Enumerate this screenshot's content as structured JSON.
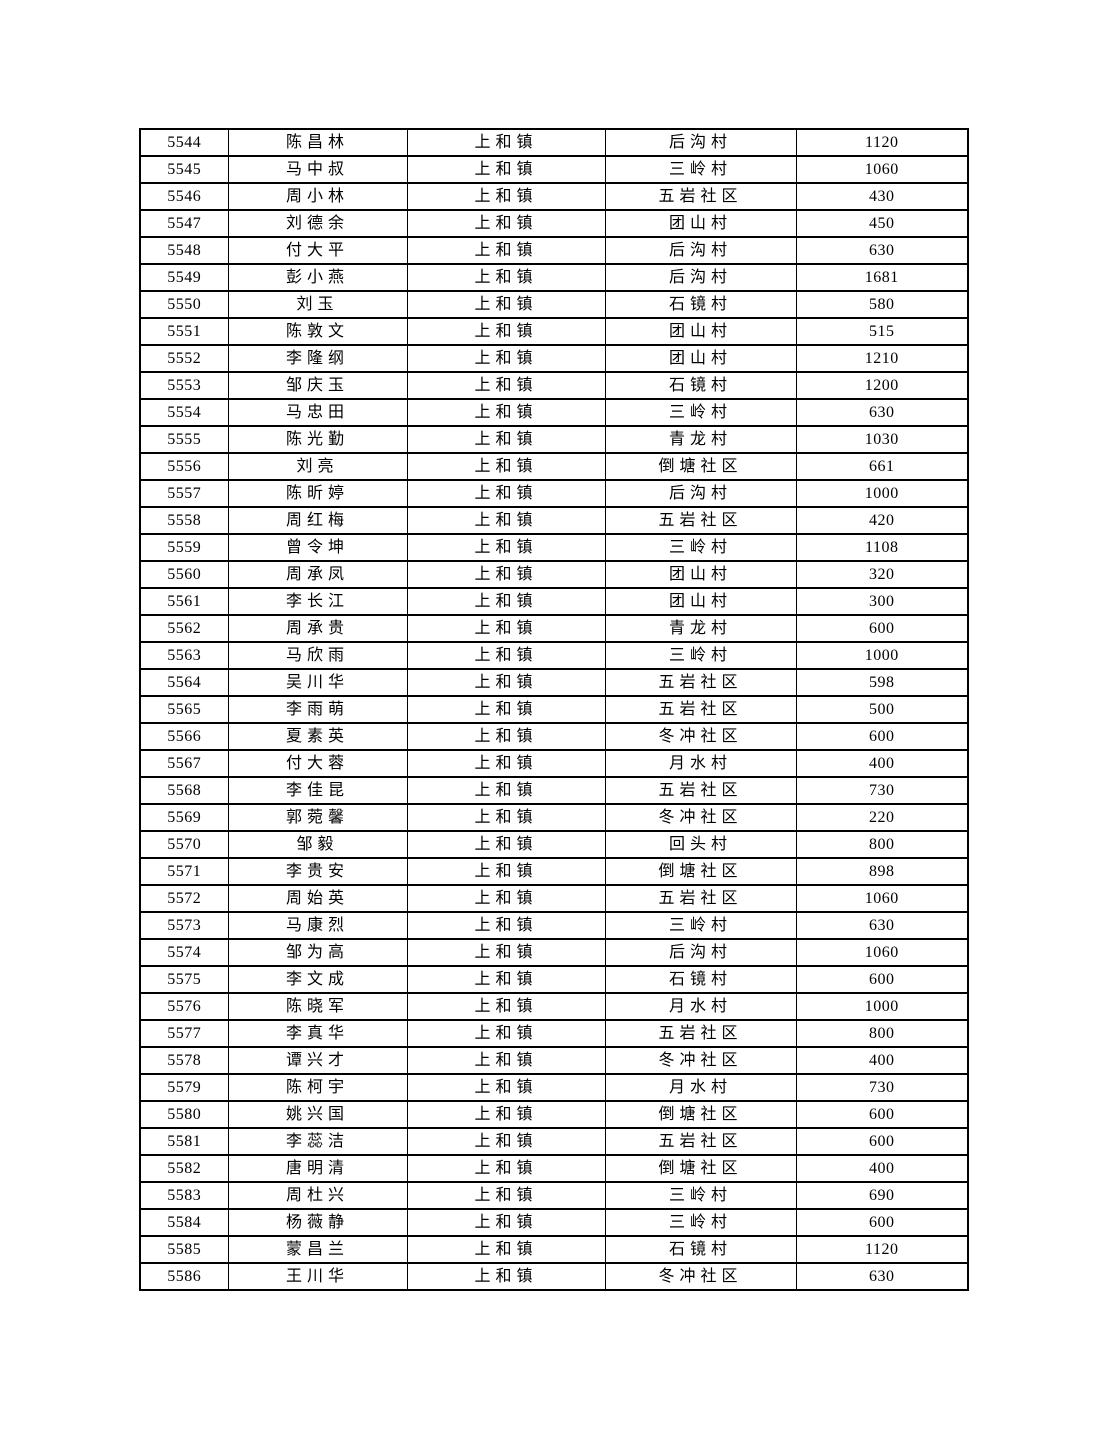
{
  "page": {
    "background_color": "#ffffff",
    "text_color": "#000000",
    "border_color": "#000000"
  },
  "table": {
    "column_names": [
      "serial-number",
      "person-name",
      "town",
      "village",
      "amount"
    ],
    "town_repeated_value": "上和镇",
    "rows": [
      [
        "5544",
        "陈昌林",
        "上和镇",
        "后沟村",
        "1120"
      ],
      [
        "5545",
        "马中叔",
        "上和镇",
        "三岭村",
        "1060"
      ],
      [
        "5546",
        "周小林",
        "上和镇",
        "五岩社区",
        "430"
      ],
      [
        "5547",
        "刘德余",
        "上和镇",
        "团山村",
        "450"
      ],
      [
        "5548",
        "付大平",
        "上和镇",
        "后沟村",
        "630"
      ],
      [
        "5549",
        "彭小燕",
        "上和镇",
        "后沟村",
        "1681"
      ],
      [
        "5550",
        "刘玉",
        "上和镇",
        "石镜村",
        "580"
      ],
      [
        "5551",
        "陈敦文",
        "上和镇",
        "团山村",
        "515"
      ],
      [
        "5552",
        "李隆纲",
        "上和镇",
        "团山村",
        "1210"
      ],
      [
        "5553",
        "邹庆玉",
        "上和镇",
        "石镜村",
        "1200"
      ],
      [
        "5554",
        "马忠田",
        "上和镇",
        "三岭村",
        "630"
      ],
      [
        "5555",
        "陈光勤",
        "上和镇",
        "青龙村",
        "1030"
      ],
      [
        "5556",
        "刘亮",
        "上和镇",
        "倒塘社区",
        "661"
      ],
      [
        "5557",
        "陈昕婷",
        "上和镇",
        "后沟村",
        "1000"
      ],
      [
        "5558",
        "周红梅",
        "上和镇",
        "五岩社区",
        "420"
      ],
      [
        "5559",
        "曾令坤",
        "上和镇",
        "三岭村",
        "1108"
      ],
      [
        "5560",
        "周承凤",
        "上和镇",
        "团山村",
        "320"
      ],
      [
        "5561",
        "李长江",
        "上和镇",
        "团山村",
        "300"
      ],
      [
        "5562",
        "周承贵",
        "上和镇",
        "青龙村",
        "600"
      ],
      [
        "5563",
        "马欣雨",
        "上和镇",
        "三岭村",
        "1000"
      ],
      [
        "5564",
        "吴川华",
        "上和镇",
        "五岩社区",
        "598"
      ],
      [
        "5565",
        "李雨萌",
        "上和镇",
        "五岩社区",
        "500"
      ],
      [
        "5566",
        "夏素英",
        "上和镇",
        "冬冲社区",
        "600"
      ],
      [
        "5567",
        "付大蓉",
        "上和镇",
        "月水村",
        "400"
      ],
      [
        "5568",
        "李佳昆",
        "上和镇",
        "五岩社区",
        "730"
      ],
      [
        "5569",
        "郭菀馨",
        "上和镇",
        "冬冲社区",
        "220"
      ],
      [
        "5570",
        "邹毅",
        "上和镇",
        "回头村",
        "800"
      ],
      [
        "5571",
        "李贵安",
        "上和镇",
        "倒塘社区",
        "898"
      ],
      [
        "5572",
        "周始英",
        "上和镇",
        "五岩社区",
        "1060"
      ],
      [
        "5573",
        "马康烈",
        "上和镇",
        "三岭村",
        "630"
      ],
      [
        "5574",
        "邹为高",
        "上和镇",
        "后沟村",
        "1060"
      ],
      [
        "5575",
        "李文成",
        "上和镇",
        "石镜村",
        "600"
      ],
      [
        "5576",
        "陈晓军",
        "上和镇",
        "月水村",
        "1000"
      ],
      [
        "5577",
        "李真华",
        "上和镇",
        "五岩社区",
        "800"
      ],
      [
        "5578",
        "谭兴才",
        "上和镇",
        "冬冲社区",
        "400"
      ],
      [
        "5579",
        "陈柯宇",
        "上和镇",
        "月水村",
        "730"
      ],
      [
        "5580",
        "姚兴国",
        "上和镇",
        "倒塘社区",
        "600"
      ],
      [
        "5581",
        "李蕊洁",
        "上和镇",
        "五岩社区",
        "600"
      ],
      [
        "5582",
        "唐明清",
        "上和镇",
        "倒塘社区",
        "400"
      ],
      [
        "5583",
        "周杜兴",
        "上和镇",
        "三岭村",
        "690"
      ],
      [
        "5584",
        "杨薇静",
        "上和镇",
        "三岭村",
        "600"
      ],
      [
        "5585",
        "蒙昌兰",
        "上和镇",
        "石镜村",
        "1120"
      ],
      [
        "5586",
        "王川华",
        "上和镇",
        "冬冲社区",
        "630"
      ]
    ]
  }
}
